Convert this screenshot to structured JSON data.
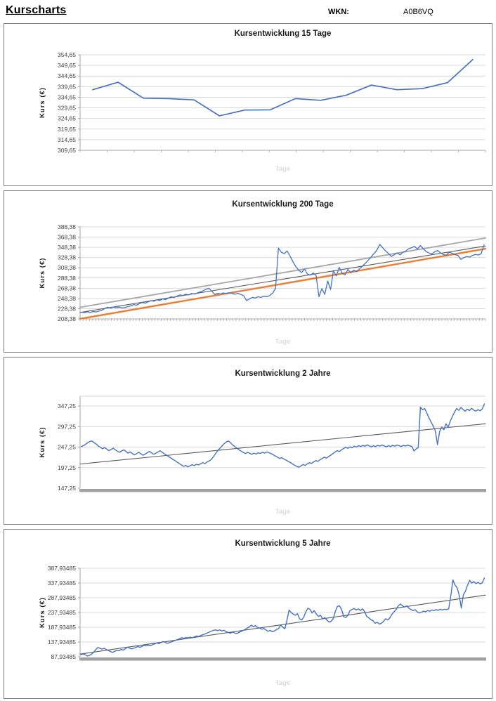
{
  "header": {
    "title": "Kurscharts",
    "wkn_label": "WKN:",
    "wkn_value": "A0B6VQ"
  },
  "colors": {
    "price_line": "#4472C4",
    "trend_orange": "#ED7D31",
    "trend_light_gray": "#A6A6A6",
    "trend_dark_gray": "#595959",
    "gridline": "#D9D9D9",
    "axis": "#A6A6A6",
    "label_text": "#3f3f3f",
    "title_text": "#1a1a1a",
    "watermark": "#DCDCDC"
  },
  "chart_data": [
    {
      "type": "line",
      "title": "Kursentwicklung 15 Tage",
      "ylabel": "Kurs (€)",
      "xlabel": "Tage",
      "y_tick_labels": [
        "354,65",
        "349,65",
        "344,65",
        "339,65",
        "334,65",
        "329,65",
        "324,65",
        "319,65",
        "314,65",
        "309,65"
      ],
      "y_max": 354.65,
      "y_min": 309.65,
      "grid": true,
      "legend": "none",
      "values": [
        338.2,
        341.7,
        334.2,
        334.0,
        333.4,
        325.9,
        328.6,
        328.7,
        334.0,
        333.2,
        335.6,
        340.4,
        338.2,
        338.7,
        341.5,
        352.4
      ],
      "trend_lines": []
    },
    {
      "type": "line",
      "title": "Kursentwicklung 200 Tage",
      "ylabel": "Kurs (€)",
      "xlabel": "Tage",
      "y_tick_labels": [
        "388,38",
        "368,38",
        "348,38",
        "328,38",
        "308,38",
        "288,38",
        "268,38",
        "248,38",
        "228,38",
        "208,38"
      ],
      "y_max": 388.38,
      "y_min": 208.38,
      "grid": true,
      "legend": "none",
      "values": [
        221.5,
        220.6,
        222.3,
        221.2,
        222.8,
        221.8,
        223.6,
        225.2,
        228.6,
        231.2,
        229.6,
        231.4,
        230.2,
        231.6,
        229.8,
        230.6,
        232.4,
        233.8,
        236.4,
        235.2,
        238.2,
        240.4,
        239.2,
        241.6,
        244.2,
        242.8,
        245.6,
        244.2,
        247.4,
        246.2,
        249.2,
        251.6,
        250.2,
        253.2,
        255.4,
        254.2,
        256.6,
        255.2,
        258.2,
        256.8,
        259.4,
        261.2,
        263.6,
        266.2,
        268.2,
        262.5,
        256.2,
        258.4,
        257.2,
        259.2,
        257.6,
        259.6,
        258.2,
        256.6,
        258.4,
        256.2,
        253.6,
        244.2,
        247.6,
        250.4,
        249.2,
        251.6,
        250.4,
        252.6,
        251.8,
        254.0,
        259.0,
        268.0,
        347.0,
        338.8,
        336.2,
        341.2,
        331.5,
        320.5,
        310.8,
        303.6,
        299.2,
        305.8,
        296.4,
        293.8,
        298.2,
        293.2,
        251.6,
        267.8,
        256.4,
        282.6,
        265.8,
        302.8,
        292.6,
        309.4,
        297.6,
        294.2,
        305.2,
        298.6,
        303.4,
        300.8,
        306.2,
        311.4,
        317.0,
        323.2,
        329.6,
        336.0,
        342.8,
        354.2,
        347.6,
        341.2,
        336.4,
        330.6,
        333.8,
        337.4,
        333.6,
        338.6,
        341.4,
        345.8,
        347.6,
        350.2,
        344.8,
        351.8,
        345.6,
        340.2,
        337.2,
        335.6,
        339.8,
        342.2,
        337.6,
        334.2,
        332.8,
        339.2,
        336.6,
        334.0,
        332.6,
        324.8,
        328.2,
        330.6,
        329.2,
        332.4,
        334.4,
        333.4,
        335.8,
        353.2
      ],
      "trend_lines": [
        {
          "name": "upper-channel",
          "color": "#A6A6A6",
          "width": 1.8,
          "start": 231.0,
          "end": 366.5
        },
        {
          "name": "mid-trend",
          "color": "#595959",
          "width": 1.1,
          "start": 221.0,
          "end": 351.0
        },
        {
          "name": "lower-channel",
          "color": "#ED7D31",
          "width": 2.4,
          "start": 208.6,
          "end": 345.5
        }
      ]
    },
    {
      "type": "line",
      "title": "Kursentwicklung 2 Jahre",
      "ylabel": "Kurs (€)",
      "xlabel": "Tage",
      "y_tick_labels": [
        "347,25",
        "297,25",
        "247,25",
        "197,25",
        "147,25"
      ],
      "y_max": 347.25,
      "y_min": 147.25,
      "grid": true,
      "legend": "none",
      "values": [
        248.2,
        250.6,
        253.8,
        257.6,
        260.8,
        262.2,
        258.4,
        254.6,
        250.2,
        246.8,
        243.2,
        245.8,
        242.4,
        238.6,
        241.2,
        244.6,
        240.8,
        237.2,
        234.6,
        237.8,
        240.6,
        236.4,
        232.8,
        235.4,
        231.6,
        228.2,
        231.4,
        234.8,
        230.6,
        227.4,
        230.2,
        233.6,
        236.8,
        233.2,
        229.8,
        232.4,
        235.2,
        238.4,
        234.6,
        230.8,
        227.6,
        224.2,
        220.8,
        217.4,
        214.2,
        210.6,
        207.2,
        203.8,
        200.4,
        202.6,
        199.2,
        201.8,
        204.6,
        202.2,
        205.4,
        203.8,
        206.6,
        209.4,
        207.2,
        210.8,
        213.6,
        217.4,
        223.8,
        231.2,
        238.6,
        244.2,
        249.8,
        255.4,
        259.6,
        262.2,
        257.8,
        252.4,
        248.6,
        244.2,
        240.8,
        237.4,
        234.2,
        231.6,
        234.4,
        232.2,
        229.8,
        232.6,
        230.4,
        233.2,
        231.8,
        234.6,
        232.4,
        235.2,
        233.6,
        231.4,
        228.6,
        225.4,
        222.8,
        219.6,
        221.4,
        218.2,
        215.6,
        212.4,
        209.8,
        206.4,
        203.2,
        200.6,
        198.4,
        201.2,
        204.8,
        202.6,
        206.4,
        209.2,
        207.6,
        211.4,
        214.2,
        212.6,
        216.4,
        219.8,
        222.6,
        220.4,
        224.2,
        227.6,
        231.4,
        235.2,
        238.6,
        236.4,
        240.2,
        243.8,
        246.6,
        244.2,
        247.8,
        245.6,
        249.4,
        247.2,
        250.8,
        248.6,
        251.4,
        249.2,
        252.6,
        250.4,
        247.8,
        250.6,
        248.4,
        251.2,
        249.6,
        252.4,
        250.2,
        247.6,
        250.8,
        248.2,
        251.6,
        249.4,
        252.2,
        250.6,
        248.8,
        251.4,
        249.8,
        252.0,
        250.4,
        248.6,
        237.8,
        242.6,
        246.4,
        344.6,
        338.2,
        341.0,
        330.4,
        318.6,
        308.2,
        298.4,
        286.8,
        253.2,
        284.6,
        296.2,
        289.4,
        303.8,
        295.6,
        310.4,
        321.8,
        332.6,
        341.2,
        336.4,
        343.8,
        338.6,
        334.4,
        339.8,
        336.2,
        341.6,
        337.2,
        334.8,
        338.4,
        335.6,
        340.2,
        352.4
      ],
      "trend_lines": [
        {
          "name": "trend",
          "color": "#595959",
          "width": 1.1,
          "start": 206.0,
          "end": 304.0
        }
      ]
    },
    {
      "type": "line",
      "title": "Kursentwicklung 5 Jahre",
      "ylabel": "Kurs (€)",
      "xlabel": "Tage",
      "y_tick_labels": [
        "387,93485",
        "337,93485",
        "287,93485",
        "237,93485",
        "187,93485",
        "137,93485",
        "87,93485"
      ],
      "y_max": 387.93485,
      "y_min": 87.93485,
      "grid": true,
      "legend": "none",
      "values": [
        95.4,
        97.2,
        94.6,
        90.2,
        92.8,
        96.4,
        103.6,
        112.8,
        119.4,
        116.2,
        113.8,
        116.6,
        112.4,
        109.2,
        105.6,
        102.8,
        106.4,
        109.8,
        108.2,
        112.6,
        110.4,
        114.8,
        120.6,
        117.2,
        114.6,
        116.8,
        119.4,
        122.8,
        119.6,
        123.4,
        126.2,
        124.6,
        127.8,
        125.4,
        129.2,
        131.6,
        134.8,
        132.4,
        136.2,
        139.6,
        136.8,
        133.2,
        135.6,
        138.4,
        141.2,
        143.8,
        146.4,
        149.2,
        152.6,
        150.2,
        153.4,
        151.8,
        154.6,
        152.2,
        155.8,
        158.4,
        156.6,
        160.2,
        162.8,
        165.4,
        168.2,
        171.6,
        174.8,
        177.4,
        179.2,
        176.6,
        178.8,
        175.2,
        177.6,
        173.4,
        170.2,
        167.6,
        171.4,
        169.2,
        166.4,
        169.8,
        173.2,
        176.8,
        180.4,
        184.6,
        189.2,
        194.8,
        190.4,
        193.6,
        187.2,
        184.8,
        181.2,
        183.6,
        178.4,
        174.6,
        177.2,
        172.8,
        175.4,
        179.8,
        183.2,
        195.6,
        188.4,
        182.6,
        212.4,
        246.2,
        237.8,
        232.4,
        228.6,
        234.2,
        216.8,
        212.4,
        222.6,
        240.4,
        252.8,
        248.2,
        236.6,
        244.4,
        232.2,
        224.8,
        228.4,
        216.6,
        220.2,
        212.8,
        205.4,
        208.2,
        216.4,
        240.6,
        258.4,
        260.2,
        248.6,
        224.4,
        220.8,
        228.2,
        244.6,
        248.4,
        251.6,
        246.2,
        250.4,
        244.8,
        250.2,
        240.6,
        224.2,
        219.8,
        213.4,
        209.6,
        201.2,
        204.8,
        198.6,
        201.4,
        208.2,
        216.8,
        212.6,
        220.4,
        232.2,
        240.8,
        248.4,
        260.2,
        266.4,
        260.8,
        256.2,
        260.4,
        252.6,
        248.2,
        244.4,
        247.8,
        240.2,
        236.6,
        238.4,
        242.8,
        240.4,
        244.6,
        242.2,
        246.8,
        244.4,
        247.6,
        245.2,
        248.8,
        246.6,
        249.2,
        247.4,
        250.6,
        295.4,
        348.2,
        330.6,
        322.4,
        296.8,
        252.8,
        298.4,
        310.6,
        331.2,
        346.8,
        337.4,
        342.6,
        335.8,
        340.4,
        334.6,
        339.2,
        355.0
      ],
      "trend_lines": [
        {
          "name": "trend",
          "color": "#595959",
          "width": 1.1,
          "start": 97.0,
          "end": 297.0
        }
      ]
    }
  ]
}
